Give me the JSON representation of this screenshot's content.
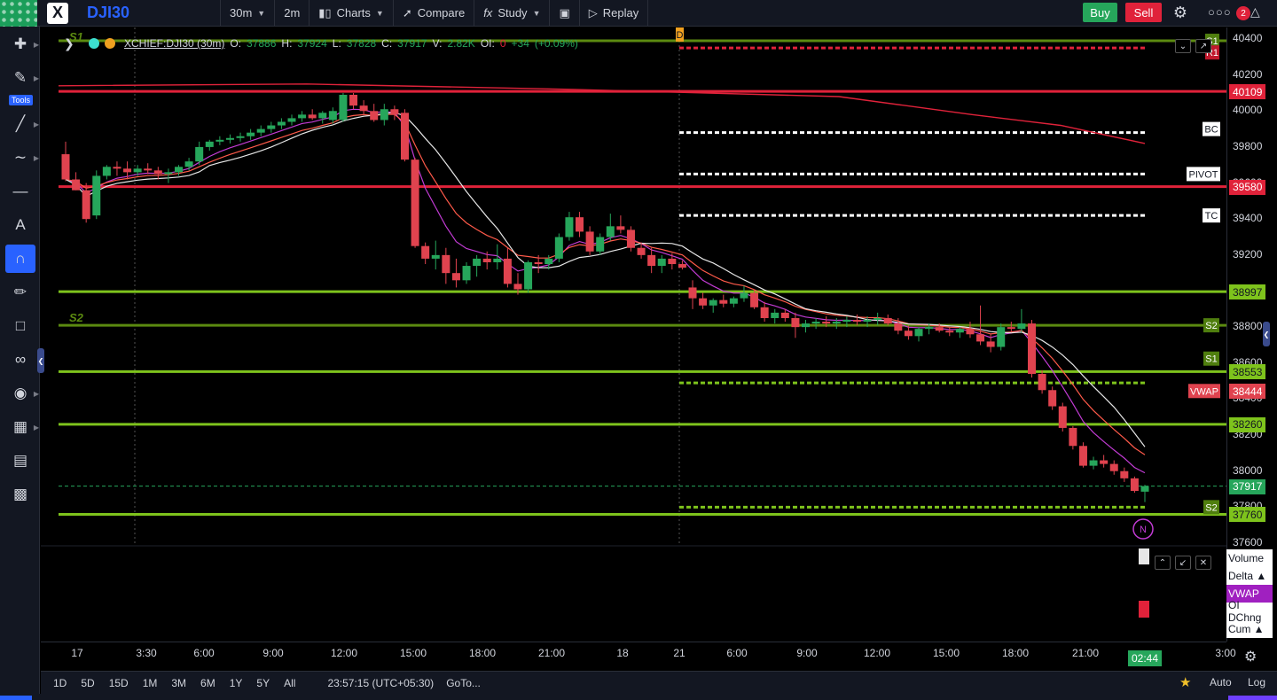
{
  "topbar": {
    "symbol": "DJI30",
    "interval": "30m",
    "interval2": "2m",
    "charts": "Charts",
    "compare": "Compare",
    "study": "Study",
    "replay": "Replay",
    "buy": "Buy",
    "sell": "Sell",
    "notifications": "2"
  },
  "tools": {
    "label": "Tools"
  },
  "legend": {
    "symbol": "XCHIEF:DJI30 (30m)",
    "o_label": "O:",
    "o": "37886",
    "h_label": "H:",
    "h": "37924",
    "l_label": "L:",
    "l": "37828",
    "c_label": "C:",
    "c": "37917",
    "v_label": "V:",
    "v": "2.82K",
    "oi_label": "OI:",
    "oi": "0",
    "change": "+34",
    "change_pct": "(+0.09%)"
  },
  "chart_data": {
    "type": "candlestick",
    "ylim": [
      37550,
      40450
    ],
    "x_ticks": [
      "17",
      "3:30",
      "6:00",
      "9:00",
      "12:00",
      "15:00",
      "18:00",
      "21:00",
      "18",
      "21",
      "6:00",
      "9:00",
      "12:00",
      "15:00",
      "18:00",
      "21:00",
      "3:00"
    ],
    "y_ticks": [
      40400,
      40200,
      40000,
      39800,
      39600,
      39400,
      39200,
      39000,
      38800,
      38600,
      38400,
      38200,
      38000,
      37800,
      37600
    ],
    "candles": [
      {
        "o": 39760,
        "h": 39830,
        "l": 39610,
        "c": 39620
      },
      {
        "o": 39620,
        "h": 39660,
        "l": 39560,
        "c": 39560
      },
      {
        "o": 39560,
        "h": 39600,
        "l": 39380,
        "c": 39400
      },
      {
        "o": 39420,
        "h": 39670,
        "l": 39400,
        "c": 39640
      },
      {
        "o": 39640,
        "h": 39700,
        "l": 39620,
        "c": 39690
      },
      {
        "o": 39690,
        "h": 39720,
        "l": 39640,
        "c": 39680
      },
      {
        "o": 39680,
        "h": 39720,
        "l": 39620,
        "c": 39660
      },
      {
        "o": 39660,
        "h": 39700,
        "l": 39640,
        "c": 39680
      },
      {
        "o": 39680,
        "h": 39710,
        "l": 39650,
        "c": 39670
      },
      {
        "o": 39670,
        "h": 39690,
        "l": 39620,
        "c": 39650
      },
      {
        "o": 39650,
        "h": 39680,
        "l": 39600,
        "c": 39660
      },
      {
        "o": 39660,
        "h": 39700,
        "l": 39640,
        "c": 39690
      },
      {
        "o": 39690,
        "h": 39740,
        "l": 39670,
        "c": 39720
      },
      {
        "o": 39720,
        "h": 39830,
        "l": 39700,
        "c": 39800
      },
      {
        "o": 39800,
        "h": 39840,
        "l": 39780,
        "c": 39830
      },
      {
        "o": 39830,
        "h": 39860,
        "l": 39810,
        "c": 39840
      },
      {
        "o": 39840,
        "h": 39870,
        "l": 39820,
        "c": 39850
      },
      {
        "o": 39850,
        "h": 39880,
        "l": 39830,
        "c": 39860
      },
      {
        "o": 39860,
        "h": 39900,
        "l": 39840,
        "c": 39880
      },
      {
        "o": 39880,
        "h": 39920,
        "l": 39860,
        "c": 39900
      },
      {
        "o": 39900,
        "h": 39940,
        "l": 39880,
        "c": 39920
      },
      {
        "o": 39920,
        "h": 39960,
        "l": 39900,
        "c": 39940
      },
      {
        "o": 39940,
        "h": 39980,
        "l": 39920,
        "c": 39960
      },
      {
        "o": 39960,
        "h": 40000,
        "l": 39940,
        "c": 39980
      },
      {
        "o": 39980,
        "h": 40010,
        "l": 39950,
        "c": 39960
      },
      {
        "o": 39960,
        "h": 40000,
        "l": 39930,
        "c": 39990
      },
      {
        "o": 39950,
        "h": 40020,
        "l": 39930,
        "c": 40000
      },
      {
        "o": 39950,
        "h": 40100,
        "l": 39940,
        "c": 40090
      },
      {
        "o": 40090,
        "h": 40100,
        "l": 40010,
        "c": 40030
      },
      {
        "o": 40030,
        "h": 40060,
        "l": 39980,
        "c": 40000
      },
      {
        "o": 40000,
        "h": 40040,
        "l": 39940,
        "c": 39950
      },
      {
        "o": 39950,
        "h": 40040,
        "l": 39920,
        "c": 40010
      },
      {
        "o": 40010,
        "h": 40030,
        "l": 39950,
        "c": 39980
      },
      {
        "o": 39990,
        "h": 40010,
        "l": 39720,
        "c": 39730
      },
      {
        "o": 39730,
        "h": 39740,
        "l": 39240,
        "c": 39250
      },
      {
        "o": 39250,
        "h": 39270,
        "l": 39150,
        "c": 39180
      },
      {
        "o": 39180,
        "h": 39280,
        "l": 39120,
        "c": 39200
      },
      {
        "o": 39200,
        "h": 39240,
        "l": 39040,
        "c": 39100
      },
      {
        "o": 39100,
        "h": 39180,
        "l": 39020,
        "c": 39060
      },
      {
        "o": 39060,
        "h": 39160,
        "l": 39040,
        "c": 39140
      },
      {
        "o": 39140,
        "h": 39200,
        "l": 39080,
        "c": 39180
      },
      {
        "o": 39180,
        "h": 39220,
        "l": 39120,
        "c": 39160
      },
      {
        "o": 39160,
        "h": 39260,
        "l": 39120,
        "c": 39180
      },
      {
        "o": 39180,
        "h": 39240,
        "l": 39020,
        "c": 39040
      },
      {
        "o": 39040,
        "h": 39100,
        "l": 38980,
        "c": 39010
      },
      {
        "o": 39010,
        "h": 39170,
        "l": 38990,
        "c": 39160
      },
      {
        "o": 39160,
        "h": 39200,
        "l": 39100,
        "c": 39150
      },
      {
        "o": 39150,
        "h": 39200,
        "l": 39120,
        "c": 39180
      },
      {
        "o": 39180,
        "h": 39320,
        "l": 39160,
        "c": 39300
      },
      {
        "o": 39300,
        "h": 39440,
        "l": 39280,
        "c": 39410
      },
      {
        "o": 39410,
        "h": 39440,
        "l": 39300,
        "c": 39330
      },
      {
        "o": 39330,
        "h": 39360,
        "l": 39200,
        "c": 39220
      },
      {
        "o": 39220,
        "h": 39320,
        "l": 39200,
        "c": 39300
      },
      {
        "o": 39300,
        "h": 39430,
        "l": 39280,
        "c": 39360
      },
      {
        "o": 39360,
        "h": 39420,
        "l": 39320,
        "c": 39340
      },
      {
        "o": 39340,
        "h": 39360,
        "l": 39220,
        "c": 39240
      },
      {
        "o": 39240,
        "h": 39270,
        "l": 39180,
        "c": 39200
      },
      {
        "o": 39200,
        "h": 39240,
        "l": 39100,
        "c": 39140
      },
      {
        "o": 39140,
        "h": 39200,
        "l": 39100,
        "c": 39180
      },
      {
        "o": 39180,
        "h": 39210,
        "l": 39120,
        "c": 39150
      },
      {
        "o": 39150,
        "h": 39170,
        "l": 39120,
        "c": 39130
      },
      {
        "o": 39020,
        "h": 39060,
        "l": 38900,
        "c": 38960
      },
      {
        "o": 38960,
        "h": 38990,
        "l": 38900,
        "c": 38920
      },
      {
        "o": 38920,
        "h": 38960,
        "l": 38880,
        "c": 38950
      },
      {
        "o": 38950,
        "h": 38980,
        "l": 38910,
        "c": 38930
      },
      {
        "o": 38930,
        "h": 38970,
        "l": 38910,
        "c": 38960
      },
      {
        "o": 38960,
        "h": 39030,
        "l": 38940,
        "c": 38990
      },
      {
        "o": 38990,
        "h": 39010,
        "l": 38900,
        "c": 38910
      },
      {
        "o": 38910,
        "h": 38940,
        "l": 38830,
        "c": 38850
      },
      {
        "o": 38850,
        "h": 38900,
        "l": 38820,
        "c": 38880
      },
      {
        "o": 38880,
        "h": 38900,
        "l": 38830,
        "c": 38850
      },
      {
        "o": 38850,
        "h": 38880,
        "l": 38740,
        "c": 38800
      },
      {
        "o": 38800,
        "h": 38840,
        "l": 38770,
        "c": 38820
      },
      {
        "o": 38820,
        "h": 38850,
        "l": 38790,
        "c": 38830
      },
      {
        "o": 38830,
        "h": 38860,
        "l": 38800,
        "c": 38820
      },
      {
        "o": 38820,
        "h": 38850,
        "l": 38790,
        "c": 38830
      },
      {
        "o": 38830,
        "h": 38860,
        "l": 38800,
        "c": 38840
      },
      {
        "o": 38840,
        "h": 38870,
        "l": 38810,
        "c": 38830
      },
      {
        "o": 38830,
        "h": 38860,
        "l": 38800,
        "c": 38840
      },
      {
        "o": 38840,
        "h": 38880,
        "l": 38810,
        "c": 38850
      },
      {
        "o": 38850,
        "h": 38870,
        "l": 38810,
        "c": 38820
      },
      {
        "o": 38820,
        "h": 38850,
        "l": 38760,
        "c": 38780
      },
      {
        "o": 38780,
        "h": 38810,
        "l": 38730,
        "c": 38750
      },
      {
        "o": 38750,
        "h": 38800,
        "l": 38720,
        "c": 38790
      },
      {
        "o": 38790,
        "h": 38820,
        "l": 38760,
        "c": 38800
      },
      {
        "o": 38800,
        "h": 38820,
        "l": 38770,
        "c": 38780
      },
      {
        "o": 38780,
        "h": 38800,
        "l": 38750,
        "c": 38770
      },
      {
        "o": 38770,
        "h": 38800,
        "l": 38740,
        "c": 38790
      },
      {
        "o": 38790,
        "h": 38830,
        "l": 38740,
        "c": 38760
      },
      {
        "o": 38760,
        "h": 38920,
        "l": 38700,
        "c": 38720
      },
      {
        "o": 38720,
        "h": 38760,
        "l": 38660,
        "c": 38690
      },
      {
        "o": 38690,
        "h": 38820,
        "l": 38670,
        "c": 38800
      },
      {
        "o": 38800,
        "h": 38830,
        "l": 38770,
        "c": 38790
      },
      {
        "o": 38790,
        "h": 38900,
        "l": 38770,
        "c": 38820
      },
      {
        "o": 38820,
        "h": 38840,
        "l": 38520,
        "c": 38540
      },
      {
        "o": 38540,
        "h": 38560,
        "l": 38430,
        "c": 38450
      },
      {
        "o": 38450,
        "h": 38470,
        "l": 38340,
        "c": 38360
      },
      {
        "o": 38360,
        "h": 38380,
        "l": 38220,
        "c": 38240
      },
      {
        "o": 38240,
        "h": 38250,
        "l": 38120,
        "c": 38140
      },
      {
        "o": 38140,
        "h": 38160,
        "l": 38020,
        "c": 38030
      },
      {
        "o": 38030,
        "h": 38080,
        "l": 38010,
        "c": 38060
      },
      {
        "o": 38060,
        "h": 38090,
        "l": 38020,
        "c": 38040
      },
      {
        "o": 38040,
        "h": 38060,
        "l": 37980,
        "c": 38000
      },
      {
        "o": 38000,
        "h": 38020,
        "l": 37940,
        "c": 37960
      },
      {
        "o": 37960,
        "h": 37970,
        "l": 37880,
        "c": 37890
      },
      {
        "o": 37886,
        "h": 37924,
        "l": 37828,
        "c": 37917
      }
    ],
    "levels": [
      {
        "label": "40109",
        "value": 40109,
        "color": "#e0223a"
      },
      {
        "label": "39580",
        "value": 39580,
        "color": "#e0223a"
      },
      {
        "label": "38997",
        "value": 38997,
        "color": "#7ec31c"
      },
      {
        "label": "38553",
        "value": 38553,
        "color": "#7ec31c"
      },
      {
        "label": "38260",
        "value": 38260,
        "color": "#7ec31c"
      },
      {
        "label": "37760",
        "value": 37760,
        "color": "#7ec31c"
      }
    ],
    "tags": {
      "r1": "R1",
      "s1_top": "S1",
      "bc": "BC",
      "pivot": "PIVOT",
      "tc": "TC",
      "s2_mid": "S2",
      "s1_mid": "S1",
      "vwap": "VWAP",
      "s2_low": "S2",
      "s1_left": "S1",
      "s2_left": "S2",
      "d_marker": "D",
      "news": "N"
    }
  },
  "price_scale": {
    "ticks": [
      "40400",
      "40200",
      "40000",
      "39800",
      "39600",
      "39400",
      "39200",
      "39000",
      "38800",
      "38600",
      "38400",
      "38200",
      "38000",
      "37800",
      "37600"
    ],
    "labels": {
      "p40109": "40109",
      "p39580": "39580",
      "p38997": "38997",
      "p38553": "38553",
      "p38444": "38444",
      "p38260": "38260",
      "p37917": "37917",
      "p37760": "37760"
    }
  },
  "time_axis": {
    "ticks": [
      "17",
      "3:30",
      "6:00",
      "9:00",
      "12:00",
      "15:00",
      "18:00",
      "21:00",
      "18",
      "21",
      "6:00",
      "9:00",
      "12:00",
      "15:00",
      "18:00",
      "21:00",
      "3:00"
    ],
    "now": "02:44"
  },
  "indicators": [
    "Volume",
    "Delta ▲",
    "VWAP",
    "OI DChng",
    "Cum ▲"
  ],
  "bottombar": {
    "ranges": [
      "1D",
      "5D",
      "15D",
      "1M",
      "3M",
      "6M",
      "1Y",
      "5Y",
      "All"
    ],
    "clock": "23:57:15 (UTC+05:30)",
    "goto": "GoTo...",
    "auto": "Auto",
    "log": "Log"
  },
  "colors": {
    "up": "#26a65b",
    "down": "#e0434f",
    "accent": "#2962ff",
    "support": "#7ec31c",
    "resistance": "#e0223a"
  }
}
